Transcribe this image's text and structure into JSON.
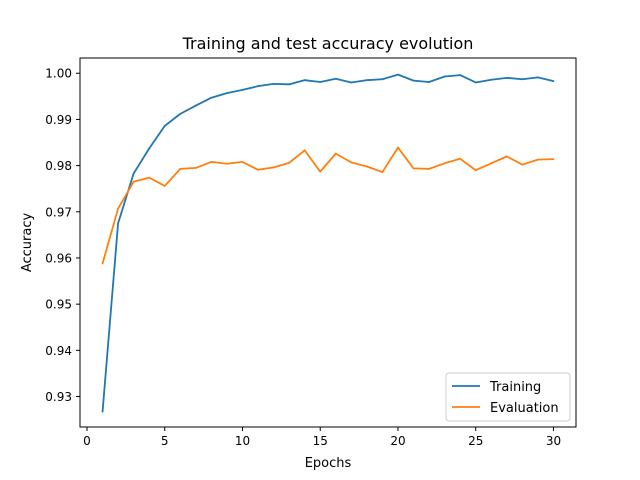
{
  "chart_data": {
    "type": "line",
    "title": "Training and test accuracy evolution",
    "xlabel": "Epochs",
    "ylabel": "Accuracy",
    "xlim": [
      -0.45,
      31.45
    ],
    "ylim": [
      0.9234,
      1.0033
    ],
    "xticks": [
      0,
      5,
      10,
      15,
      20,
      25,
      30
    ],
    "yticks": [
      0.93,
      0.94,
      0.95,
      0.96,
      0.97,
      0.98,
      0.99,
      1.0
    ],
    "ytick_labels": [
      "0.93",
      "0.94",
      "0.95",
      "0.96",
      "0.97",
      "0.98",
      "0.99",
      "1.00"
    ],
    "legend_position": "bottom-right",
    "x": [
      1,
      2,
      3,
      4,
      5,
      6,
      7,
      8,
      9,
      10,
      11,
      12,
      13,
      14,
      15,
      16,
      17,
      18,
      19,
      20,
      21,
      22,
      23,
      24,
      25,
      26,
      27,
      28,
      29,
      30
    ],
    "series": [
      {
        "name": "Training",
        "color": "#1f77b4",
        "values": [
          0.9267,
          0.9675,
          0.9783,
          0.9837,
          0.9886,
          0.9912,
          0.993,
          0.9947,
          0.9957,
          0.9964,
          0.9972,
          0.9977,
          0.9976,
          0.9985,
          0.9981,
          0.9988,
          0.998,
          0.9985,
          0.9987,
          0.9997,
          0.9984,
          0.9981,
          0.9993,
          0.9996,
          0.998,
          0.9986,
          0.999,
          0.9987,
          0.9991,
          0.9983
        ]
      },
      {
        "name": "Evaluation",
        "color": "#ff7f0e",
        "values": [
          0.9588,
          0.9707,
          0.9765,
          0.9774,
          0.9756,
          0.9793,
          0.9795,
          0.9808,
          0.9804,
          0.9808,
          0.9791,
          0.9796,
          0.9806,
          0.9833,
          0.9787,
          0.9826,
          0.9807,
          0.9798,
          0.9786,
          0.9839,
          0.9794,
          0.9793,
          0.9805,
          0.9815,
          0.979,
          0.9805,
          0.982,
          0.9802,
          0.9813,
          0.9814
        ]
      }
    ]
  }
}
